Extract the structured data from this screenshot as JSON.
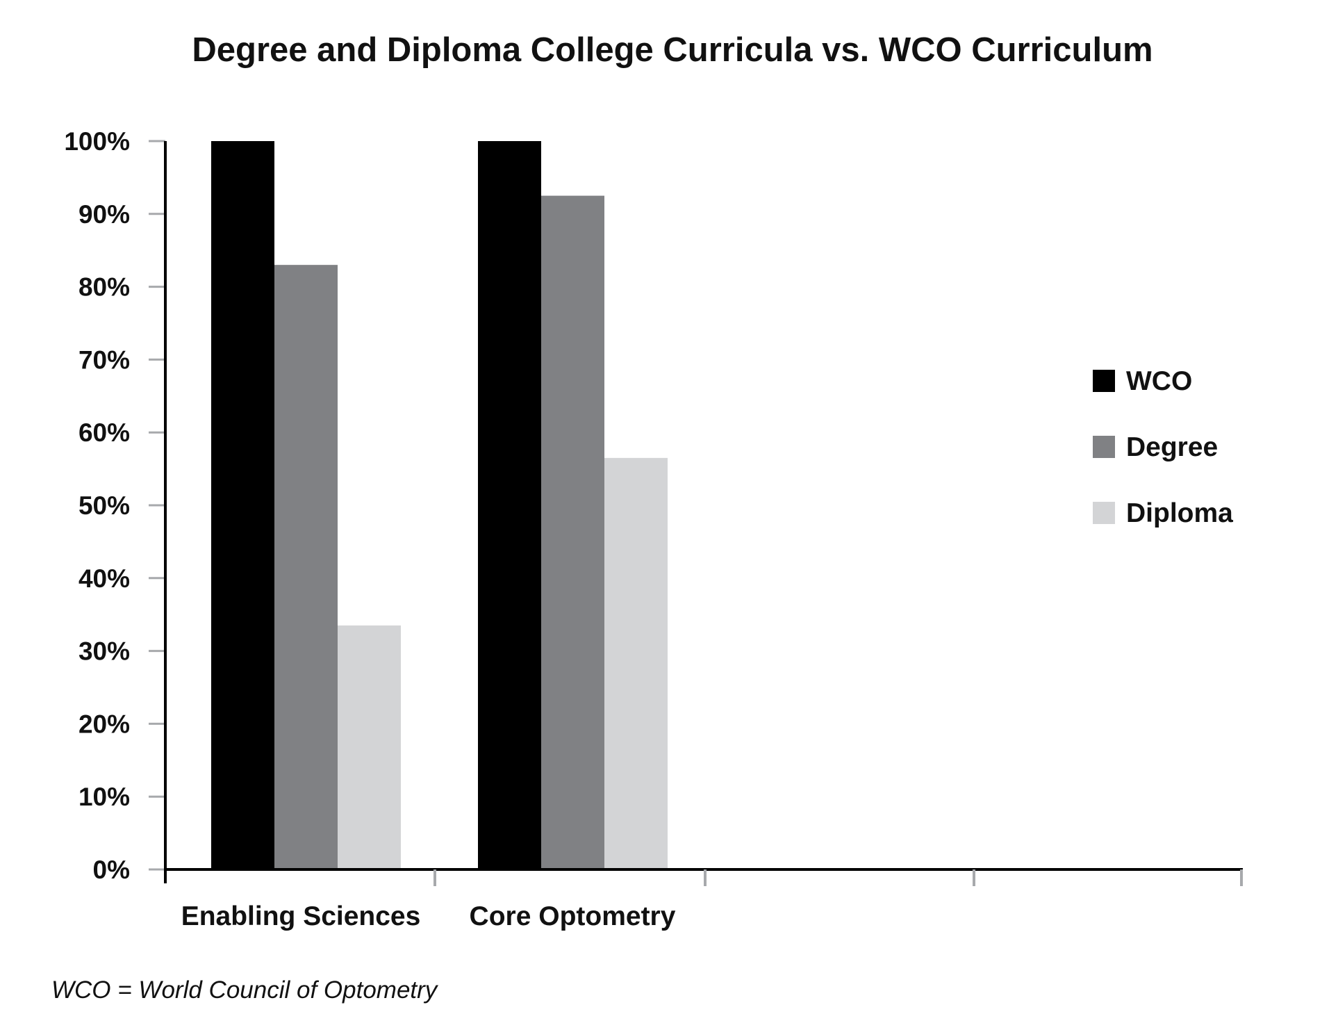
{
  "chart_data": {
    "type": "bar",
    "title": "Degree and Diploma College Curricula vs. WCO Curriculum",
    "categories": [
      "Enabling Sciences",
      "Core Optometry"
    ],
    "series": [
      {
        "name": "WCO",
        "values": [
          100,
          100
        ],
        "color": "#000000"
      },
      {
        "name": "Degree",
        "values": [
          83,
          92.5
        ],
        "color": "#808184"
      },
      {
        "name": "Diploma",
        "values": [
          33.5,
          56.5
        ],
        "color": "#d3d4d6"
      }
    ],
    "yticks": [
      "0%",
      "10%",
      "20%",
      "30%",
      "40%",
      "50%",
      "60%",
      "70%",
      "80%",
      "90%",
      "100%"
    ],
    "ylim": [
      0,
      100
    ],
    "xlabel": "",
    "ylabel": "",
    "legend_position": "right",
    "grid": false,
    "footnote": "WCO = World Council of Optometry"
  }
}
